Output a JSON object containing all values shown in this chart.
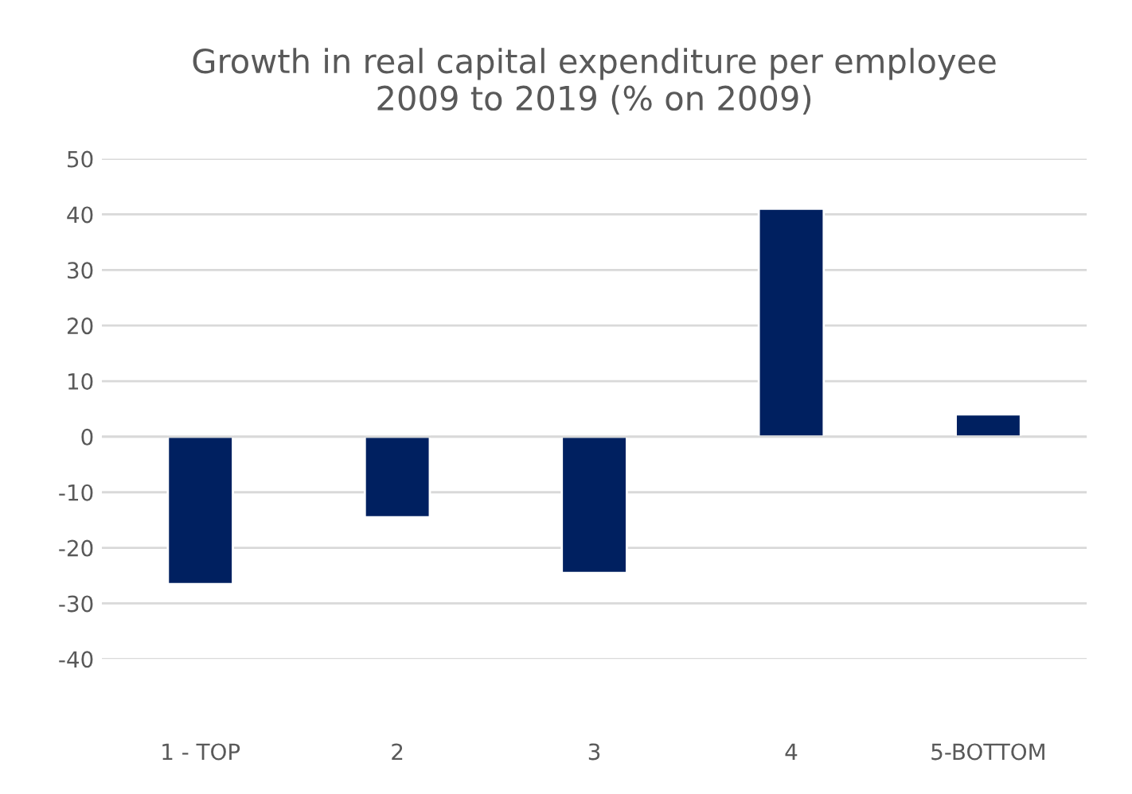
{
  "chart_data": {
    "type": "bar",
    "title": "Growth in real capital expenditure per employee\n2009 to 2019 (% on 2009)",
    "categories": [
      "1 - TOP",
      "2",
      "3",
      "4",
      "5-BOTTOM"
    ],
    "values": [
      -26.5,
      -14.5,
      -24.5,
      41,
      4
    ],
    "color": "#002060",
    "ylim": [
      -40,
      50
    ],
    "yticks": [
      -40,
      -30,
      -20,
      -10,
      0,
      10,
      20,
      30,
      40,
      50
    ],
    "grid": "y"
  }
}
